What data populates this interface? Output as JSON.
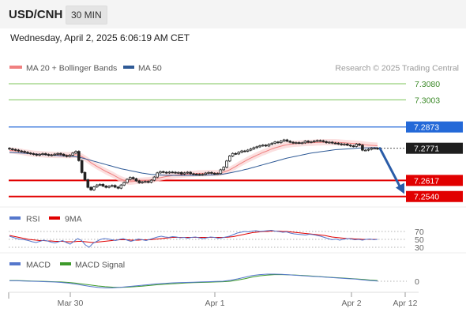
{
  "header": {
    "pair": "USD/CNH",
    "timeframe": "30 MIN",
    "datetime": "Wednesday, April 2, 2025 6:06:19 AM CET"
  },
  "legend": {
    "ma20": "MA 20 + Bollinger Bands",
    "ma50": "MA 50",
    "credit": "Research © 2025 Trading Central"
  },
  "colors": {
    "ma20": "#f08080",
    "ma50": "#2f5a96",
    "band": "#f9d6d6",
    "resistance": "#2469d8",
    "support": "#e10000",
    "target": "#7cc55a",
    "rsi": "#5577cc",
    "rsi_ma": "#e10000",
    "macd": "#5577cc",
    "macd_signal": "#3d9a2a",
    "arrow": "#2a5ca8"
  },
  "chart_data": {
    "type": "line",
    "title": "USD/CNH",
    "timeframe": "30 MIN",
    "x_ticks": [
      "Mar 30",
      "Apr 1",
      "Apr 2",
      "Apr 12"
    ],
    "ylim": [
      7.2505,
      7.3114
    ],
    "price_levels": [
      {
        "value": 7.308,
        "label": "7.3080",
        "role": "target"
      },
      {
        "value": 7.3003,
        "label": "7.3003",
        "role": "target"
      },
      {
        "value": 7.2873,
        "label": "7.2873",
        "role": "resistance"
      },
      {
        "value": 7.2771,
        "label": "7.2771",
        "role": "last"
      },
      {
        "value": 7.2617,
        "label": "7.2617",
        "role": "support"
      },
      {
        "value": 7.254,
        "label": "7.2540",
        "role": "support"
      }
    ],
    "price_series": [
      7.2768,
      7.2765,
      7.2762,
      7.2758,
      7.2756,
      7.2752,
      7.2748,
      7.2745,
      7.2742,
      7.2738,
      7.2742,
      7.2745,
      7.2741,
      7.2737,
      7.2739,
      7.2743,
      7.2746,
      7.2742,
      7.2736,
      7.2732,
      7.2738,
      7.2748,
      7.2756,
      7.2712,
      7.2655,
      7.262,
      7.2584,
      7.2572,
      7.2586,
      7.2595,
      7.2598,
      7.259,
      7.2584,
      7.2589,
      7.2593,
      7.2585,
      7.258,
      7.2595,
      7.2607,
      7.2622,
      7.2631,
      7.2625,
      7.2615,
      7.2606,
      7.261,
      7.2612,
      7.2608,
      7.2618,
      7.2633,
      7.2653,
      7.2659,
      7.2656,
      7.2653,
      7.2657,
      7.2656,
      7.2653,
      7.2655,
      7.2648,
      7.2653,
      7.2656,
      7.2649,
      7.2647,
      7.2646,
      7.2644,
      7.2646,
      7.2652,
      7.2655,
      7.2651,
      7.2648,
      7.265,
      7.2668,
      7.268,
      7.271,
      7.2734,
      7.2746,
      7.2744,
      7.2752,
      7.2758,
      7.2757,
      7.2762,
      7.2768,
      7.2774,
      7.2778,
      7.2783,
      7.2786,
      7.2782,
      7.279,
      7.2795,
      7.2801,
      7.2798,
      7.2806,
      7.2811,
      7.2805,
      7.28,
      7.2796,
      7.2798,
      7.2796,
      7.2797,
      7.2805,
      7.28,
      7.2802,
      7.2806,
      7.2808,
      7.2807,
      7.2803,
      7.2798,
      7.28,
      7.2796,
      7.2795,
      7.2792,
      7.2788,
      7.2791,
      7.2786,
      7.2782,
      7.278,
      7.2791,
      7.2786,
      7.2762,
      7.2762,
      7.2766,
      7.2771,
      7.2771,
      7.2768
    ],
    "ma20_series": [
      7.276,
      7.276,
      7.2758,
      7.2756,
      7.2754,
      7.2751,
      7.2749,
      7.2747,
      7.2745,
      7.2744,
      7.2743,
      7.2742,
      7.2741,
      7.274,
      7.274,
      7.2739,
      7.2739,
      7.2739,
      7.2739,
      7.2738,
      7.2738,
      7.2739,
      7.274,
      7.2737,
      7.2731,
      7.2723,
      7.2713,
      7.2702,
      7.2693,
      7.2684,
      7.2676,
      7.2668,
      7.266,
      7.2653,
      7.2646,
      7.2638,
      7.263,
      7.2623,
      7.2617,
      7.2612,
      7.2611,
      7.2612,
      7.2614,
      7.2615,
      7.2616,
      7.2617,
      7.2618,
      7.262,
      7.2623,
      7.2627,
      7.263,
      7.2633,
      7.2636,
      7.2638,
      7.264,
      7.2642,
      7.2644,
      7.2645,
      7.2646,
      7.2647,
      7.2648,
      7.2649,
      7.265,
      7.2651,
      7.2651,
      7.2651,
      7.2652,
      7.2652,
      7.2652,
      7.2652,
      7.2654,
      7.2657,
      7.2662,
      7.2668,
      7.2676,
      7.2684,
      7.2693,
      7.2701,
      7.2709,
      7.2717,
      7.2724,
      7.2731,
      7.2738,
      7.2744,
      7.2751,
      7.2756,
      7.2762,
      7.2768,
      7.2773,
      7.2777,
      7.2781,
      7.2785,
      7.2788,
      7.279,
      7.2792,
      7.2793,
      7.2794,
      7.2795,
      7.2796,
      7.2797,
      7.2797,
      7.2798,
      7.2799,
      7.2799,
      7.28,
      7.28,
      7.28,
      7.28,
      7.28,
      7.2799,
      7.2798,
      7.2797,
      7.2796,
      7.2795,
      7.2794,
      7.2793,
      7.2792,
      7.279,
      7.2788,
      7.2786,
      7.2785,
      7.2784,
      7.2783
    ],
    "band_width": 0.0015,
    "ma50_series": [
      7.2752,
      7.2751,
      7.275,
      7.2749,
      7.2748,
      7.2747,
      7.2746,
      7.2745,
      7.2744,
      7.2743,
      7.2742,
      7.2741,
      7.274,
      7.2739,
      7.2738,
      7.2737,
      7.2736,
      7.2735,
      7.2734,
      7.2733,
      7.2732,
      7.2731,
      7.273,
      7.2728,
      7.2725,
      7.2721,
      7.2717,
      7.2713,
      7.2709,
      7.2705,
      7.2701,
      7.2697,
      7.2693,
      7.2689,
      7.2685,
      7.2681,
      7.2677,
      7.2673,
      7.267,
      7.2667,
      7.2664,
      7.2661,
      7.2658,
      7.2655,
      7.2652,
      7.265,
      7.2648,
      7.2646,
      7.2645,
      7.2644,
      7.2643,
      7.2642,
      7.2641,
      7.2641,
      7.2641,
      7.2641,
      7.2641,
      7.2641,
      7.2641,
      7.2641,
      7.2641,
      7.2641,
      7.2641,
      7.2641,
      7.2642,
      7.2642,
      7.2643,
      7.2643,
      7.2644,
      7.2645,
      7.2646,
      7.2648,
      7.265,
      7.2653,
      7.2656,
      7.2659,
      7.2662,
      7.2665,
      7.2669,
      7.2672,
      7.2676,
      7.268,
      7.2684,
      7.2688,
      7.2692,
      7.2696,
      7.27,
      7.2704,
      7.2708,
      7.2712,
      7.2716,
      7.272,
      7.2724,
      7.2727,
      7.273,
      7.2733,
      7.2736,
      7.2739,
      7.2742,
      7.2745,
      7.2748,
      7.275,
      7.2752,
      7.2754,
      7.2756,
      7.2758,
      7.276,
      7.2762,
      7.2764,
      7.2765,
      7.2766,
      7.2767,
      7.2768,
      7.2769,
      7.277,
      7.2771,
      7.2772,
      7.2772,
      7.2773,
      7.2773,
      7.2774,
      7.2774,
      7.2774
    ],
    "forecast": {
      "from": 7.2771,
      "to": 7.256
    },
    "rsi": {
      "levels": [
        70,
        50,
        30
      ],
      "labels": [
        "70",
        "50",
        "30"
      ],
      "legend": [
        "RSI",
        "9MA"
      ],
      "rsi_series": [
        58,
        55,
        52,
        50,
        49,
        47,
        44,
        42,
        45,
        48,
        46,
        43,
        41,
        44,
        47,
        42,
        38,
        45,
        52,
        47,
        36,
        30,
        40,
        45,
        50,
        52,
        51,
        49,
        47,
        50,
        52,
        48,
        45,
        48,
        51,
        49,
        47,
        50,
        53,
        56,
        58,
        56,
        55,
        57,
        56,
        54,
        55,
        53,
        55,
        56,
        54,
        52,
        54,
        56,
        55,
        53,
        54,
        56,
        58,
        62,
        66,
        68,
        70,
        69,
        71,
        72,
        70,
        71,
        72,
        73,
        71,
        70,
        68,
        69,
        66,
        64,
        63,
        62,
        61,
        63,
        62,
        60,
        58,
        55,
        52,
        49,
        51,
        48,
        50,
        52,
        51,
        49,
        50,
        48,
        50,
        51,
        49,
        50
      ],
      "ma_series": [
        60,
        58,
        56,
        54,
        52,
        50,
        49,
        48,
        47,
        47,
        46,
        46,
        45,
        45,
        45,
        44,
        44,
        44,
        45,
        45,
        44,
        43,
        42,
        43,
        44,
        45,
        46,
        47,
        48,
        49,
        49,
        49,
        48,
        48,
        48,
        49,
        49,
        49,
        50,
        51,
        52,
        53,
        54,
        55,
        55,
        55,
        55,
        55,
        55,
        55,
        55,
        55,
        55,
        55,
        55,
        55,
        55,
        55,
        56,
        57,
        59,
        61,
        63,
        65,
        67,
        68,
        69,
        70,
        70,
        71,
        71,
        71,
        70,
        70,
        69,
        68,
        67,
        66,
        65,
        64,
        63,
        62,
        61,
        60,
        58,
        56,
        55,
        54,
        53,
        52,
        52,
        51,
        51,
        50,
        50,
        50,
        50,
        50
      ]
    },
    "macd": {
      "zero_label": "0",
      "legend": [
        "MACD",
        "MACD Signal"
      ],
      "ylim": [
        -0.004,
        0.004
      ],
      "macd_series": [
        0.0002,
        0.0002,
        0.0001,
        0.0,
        -0.0001,
        -0.0002,
        -0.0003,
        -0.0005,
        -0.0008,
        -0.0012,
        -0.0017,
        -0.0022,
        -0.0026,
        -0.0028,
        -0.0028,
        -0.0026,
        -0.0023,
        -0.002,
        -0.0017,
        -0.0014,
        -0.0011,
        -0.0009,
        -0.0007,
        -0.0006,
        -0.0005,
        -0.0004,
        -0.0003,
        -0.0002,
        -0.0001,
        0.0,
        0.0004,
        0.001,
        0.0017,
        0.0024,
        0.0028,
        0.003,
        0.003,
        0.0029,
        0.0027,
        0.0025,
        0.0023,
        0.0021,
        0.0019,
        0.0017,
        0.0015,
        0.0013,
        0.0011,
        0.0009,
        0.0006,
        0.0003,
        0.0001
      ],
      "signal_series": [
        0.0003,
        0.0003,
        0.0002,
        0.0001,
        0.0,
        -0.0001,
        -0.0002,
        -0.0003,
        -0.0005,
        -0.0008,
        -0.0012,
        -0.0016,
        -0.002,
        -0.0023,
        -0.0025,
        -0.0026,
        -0.0025,
        -0.0023,
        -0.0021,
        -0.0018,
        -0.0015,
        -0.0013,
        -0.0011,
        -0.0009,
        -0.0007,
        -0.0006,
        -0.0005,
        -0.0004,
        -0.0003,
        -0.0002,
        0.0,
        0.0005,
        0.0011,
        0.0018,
        0.0023,
        0.0026,
        0.0028,
        0.0028,
        0.0027,
        0.0026,
        0.0024,
        0.0022,
        0.002,
        0.0018,
        0.0016,
        0.0014,
        0.0012,
        0.001,
        0.0008,
        0.0005,
        0.0003
      ]
    },
    "grid": false,
    "legend_position": "top-left"
  }
}
